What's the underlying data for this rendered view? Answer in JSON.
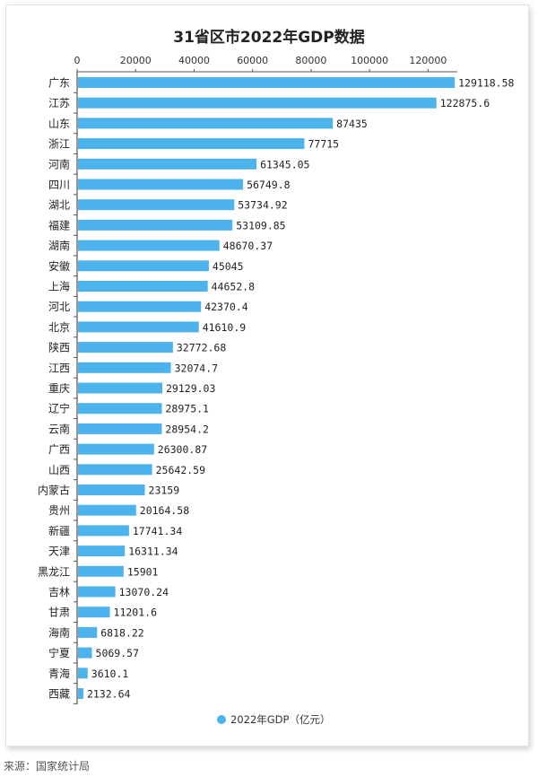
{
  "chart_data": {
    "type": "bar",
    "orientation": "horizontal",
    "title": "31省区市2022年GDP数据",
    "xlim": [
      0,
      130000
    ],
    "x_ticks": [
      "0",
      "20000",
      "40000",
      "60000",
      "80000",
      "100000",
      "120000"
    ],
    "legend": {
      "label": "2022年GDP（亿元）",
      "position": "bottom"
    },
    "colors": {
      "bar": "#4db3ec",
      "axis": "#333333",
      "text": "#222222"
    },
    "categories": [
      "广东",
      "江苏",
      "山东",
      "浙江",
      "河南",
      "四川",
      "湖北",
      "福建",
      "湖南",
      "安徽",
      "上海",
      "河北",
      "北京",
      "陕西",
      "江西",
      "重庆",
      "辽宁",
      "云南",
      "广西",
      "山西",
      "内蒙古",
      "贵州",
      "新疆",
      "天津",
      "黑龙江",
      "吉林",
      "甘肃",
      "海南",
      "宁夏",
      "青海",
      "西藏"
    ],
    "values": [
      129118.58,
      122875.6,
      87435,
      77715,
      61345.05,
      56749.8,
      53734.92,
      53109.85,
      48670.37,
      45045,
      44652.8,
      42370.4,
      41610.9,
      32772.68,
      32074.7,
      29129.03,
      28975.1,
      28954.2,
      26300.87,
      25642.59,
      23159,
      20164.58,
      17741.34,
      16311.34,
      15901,
      13070.24,
      11201.6,
      6818.22,
      5069.57,
      3610.1,
      2132.64
    ],
    "value_labels": [
      "129118.58",
      "122875.6",
      "87435",
      "77715",
      "61345.05",
      "56749.8",
      "53734.92",
      "53109.85",
      "48670.37",
      "45045",
      "44652.8",
      "42370.4",
      "41610.9",
      "32772.68",
      "32074.7",
      "29129.03",
      "28975.1",
      "28954.2",
      "26300.87",
      "25642.59",
      "23159",
      "20164.58",
      "17741.34",
      "16311.34",
      "15901",
      "13070.24",
      "11201.6",
      "6818.22",
      "5069.57",
      "3610.1",
      "2132.64"
    ]
  },
  "footer": {
    "source": "来源：国家统计局"
  }
}
